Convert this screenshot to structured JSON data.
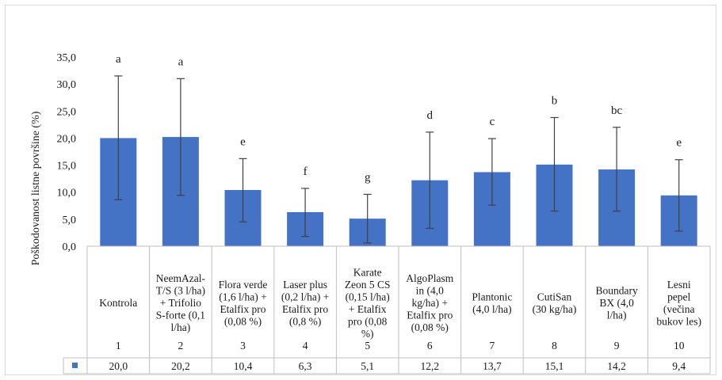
{
  "chart_data": {
    "type": "bar",
    "ylabel": "Poškodovanost listne površine (%)",
    "ylim": [
      0,
      35
    ],
    "yticks": [
      "0,0",
      "5,0",
      "10,0",
      "15,0",
      "20,0",
      "25,0",
      "30,0",
      "35,0"
    ],
    "ytick_values": [
      0,
      5,
      10,
      15,
      20,
      25,
      30,
      35
    ],
    "grid": false,
    "bar_color": "#4472c4",
    "error_bar_color": "#404040",
    "categories": [
      {
        "lines": [
          "Kontrola"
        ],
        "number": "1"
      },
      {
        "lines": [
          "NeemAzal-",
          "T/S (3 l/ha)",
          "+ Trifolio",
          "S-forte (0,1",
          "l/ha)"
        ],
        "number": "2"
      },
      {
        "lines": [
          "Flora verde",
          "(1,6 l/ha) +",
          "Etalfix pro",
          "(0,08 %)"
        ],
        "number": "3"
      },
      {
        "lines": [
          "Laser plus",
          "(0,2 l/ha) +",
          "Etalfix pro",
          "(0,8 %)"
        ],
        "number": "4"
      },
      {
        "lines": [
          "Karate",
          "Zeon 5 CS",
          "(0,15 l/ha)",
          "+ Etalfix",
          "pro (0,08",
          "%)"
        ],
        "number": "5"
      },
      {
        "lines": [
          "AlgoPlasm",
          "in (4,0",
          "kg/ha) +",
          "Etalfix pro",
          "(0,08 %)"
        ],
        "number": "6"
      },
      {
        "lines": [
          "Plantonic",
          "(4,0 l/ha)"
        ],
        "number": "7"
      },
      {
        "lines": [
          "CutiSan",
          "(30 kg/ha)"
        ],
        "number": "8"
      },
      {
        "lines": [
          "Boundary",
          "BX (4,0",
          "l/ha)"
        ],
        "number": "9"
      },
      {
        "lines": [
          "Lesni",
          "pepel",
          "(večina",
          "bukov les)"
        ],
        "number": "10"
      }
    ],
    "values": [
      20.0,
      20.2,
      10.4,
      6.3,
      5.1,
      12.2,
      13.7,
      15.1,
      14.2,
      9.4
    ],
    "value_labels": [
      "20,0",
      "20,2",
      "10,4",
      "6,3",
      "5,1",
      "12,2",
      "13,7",
      "15,1",
      "14,2",
      "9,4"
    ],
    "error_low": [
      8.6,
      9.4,
      4.5,
      1.8,
      0.6,
      3.3,
      7.6,
      6.5,
      6.5,
      2.8
    ],
    "error_high": [
      31.5,
      31.0,
      16.2,
      10.7,
      9.6,
      21.1,
      19.9,
      23.8,
      22.0,
      16.0
    ],
    "significance_letters": [
      "a",
      "a",
      "e",
      "f",
      "g",
      "d",
      "c",
      "b",
      "bc",
      "e"
    ]
  }
}
